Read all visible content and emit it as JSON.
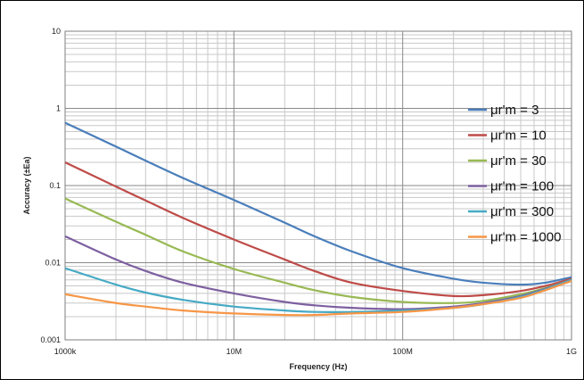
{
  "chart_data": {
    "type": "line",
    "title": "",
    "xlabel": "Frequency (Hz)",
    "ylabel": "Accuracy (±Ea)",
    "x_scale": "log",
    "y_scale": "log",
    "xlim": [
      1000000,
      1000000000
    ],
    "ylim": [
      0.001,
      10
    ],
    "x_ticks": [
      {
        "value": 1000000,
        "label": "1000k"
      },
      {
        "value": 10000000,
        "label": "10M"
      },
      {
        "value": 100000000,
        "label": "100M"
      },
      {
        "value": 1000000000,
        "label": "1G"
      }
    ],
    "y_ticks": [
      {
        "value": 10,
        "label": "10"
      },
      {
        "value": 1,
        "label": "1"
      },
      {
        "value": 0.1,
        "label": "0.1"
      },
      {
        "value": 0.01,
        "label": "0.01"
      },
      {
        "value": 0.001,
        "label": "0.001"
      }
    ],
    "grid": true,
    "legend_position": "right",
    "x": [
      1000000,
      2000000,
      3000000,
      5000000,
      10000000,
      20000000,
      30000000,
      50000000,
      100000000,
      200000000,
      300000000,
      500000000,
      700000000,
      1000000000
    ],
    "series": [
      {
        "name": "μr'm = 3",
        "color": "#4A7EBB",
        "values": [
          0.65,
          0.32,
          0.21,
          0.125,
          0.065,
          0.033,
          0.022,
          0.014,
          0.0085,
          0.0062,
          0.0055,
          0.0052,
          0.0055,
          0.0065
        ]
      },
      {
        "name": "μr'm = 10",
        "color": "#BE4B48",
        "values": [
          0.2,
          0.097,
          0.064,
          0.038,
          0.02,
          0.011,
          0.0078,
          0.0055,
          0.0043,
          0.0037,
          0.0038,
          0.0043,
          0.005,
          0.0062
        ]
      },
      {
        "name": "μr'm = 30",
        "color": "#98B954",
        "values": [
          0.068,
          0.034,
          0.023,
          0.014,
          0.0083,
          0.0055,
          0.0044,
          0.0036,
          0.0031,
          0.003,
          0.0032,
          0.0039,
          0.0047,
          0.006
        ]
      },
      {
        "name": "μr'm = 100",
        "color": "#7D60A0",
        "values": [
          0.022,
          0.011,
          0.0078,
          0.0055,
          0.004,
          0.0031,
          0.0028,
          0.0026,
          0.0025,
          0.0027,
          0.003,
          0.0037,
          0.0046,
          0.006
        ]
      },
      {
        "name": "μr'm = 300",
        "color": "#46AAC5",
        "values": [
          0.0085,
          0.0052,
          0.0041,
          0.0033,
          0.0027,
          0.0024,
          0.0023,
          0.0023,
          0.0024,
          0.0026,
          0.0029,
          0.0036,
          0.0045,
          0.006
        ]
      },
      {
        "name": "μr'm = 1000",
        "color": "#F79646",
        "values": [
          0.0039,
          0.003,
          0.0027,
          0.0024,
          0.0022,
          0.0021,
          0.0021,
          0.0022,
          0.0023,
          0.0026,
          0.0029,
          0.0035,
          0.0044,
          0.0058
        ]
      }
    ]
  }
}
